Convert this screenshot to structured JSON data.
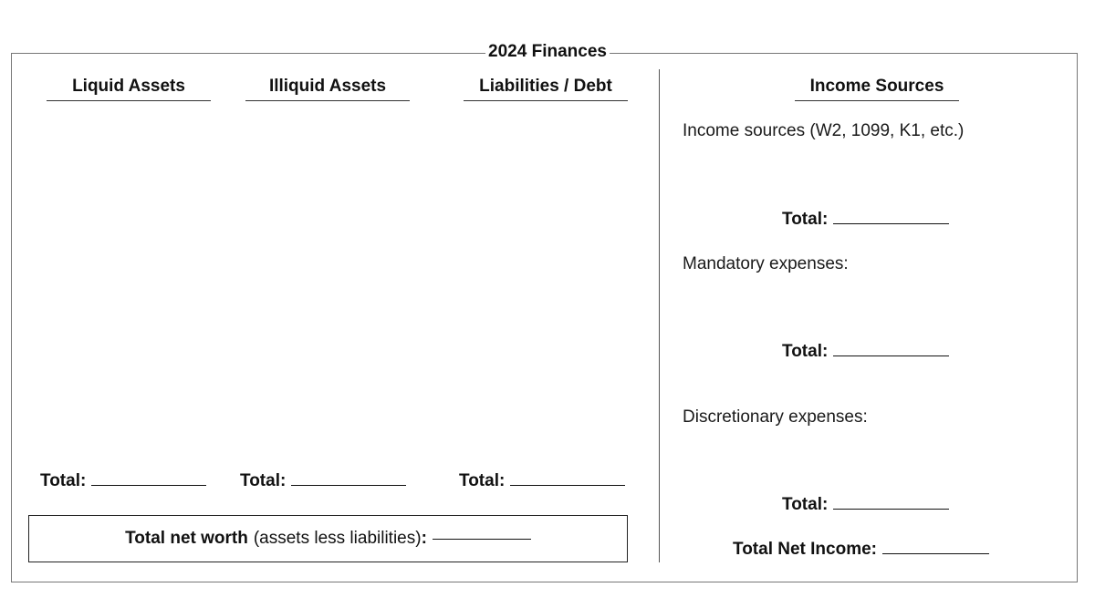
{
  "title": "2024 Finances",
  "left": {
    "columns": [
      {
        "heading": "Liquid Assets",
        "total_label": "Total:"
      },
      {
        "heading": "Illiquid Assets",
        "total_label": "Total:"
      },
      {
        "heading": "Liabilities / Debt",
        "total_label": "Total:"
      }
    ],
    "net_worth": {
      "label": "Total net worth",
      "note": "(assets less liabilities)",
      "colon": ":"
    }
  },
  "right": {
    "heading": "Income Sources",
    "income_text": "Income sources (W2, 1099, K1, etc.)",
    "income_total_label": "Total:",
    "mandatory_text": "Mandatory expenses:",
    "mandatory_total_label": "Total:",
    "discretionary_text": "Discretionary expenses:",
    "discretionary_total_label": "Total:",
    "net_income_label": "Total Net Income:"
  }
}
